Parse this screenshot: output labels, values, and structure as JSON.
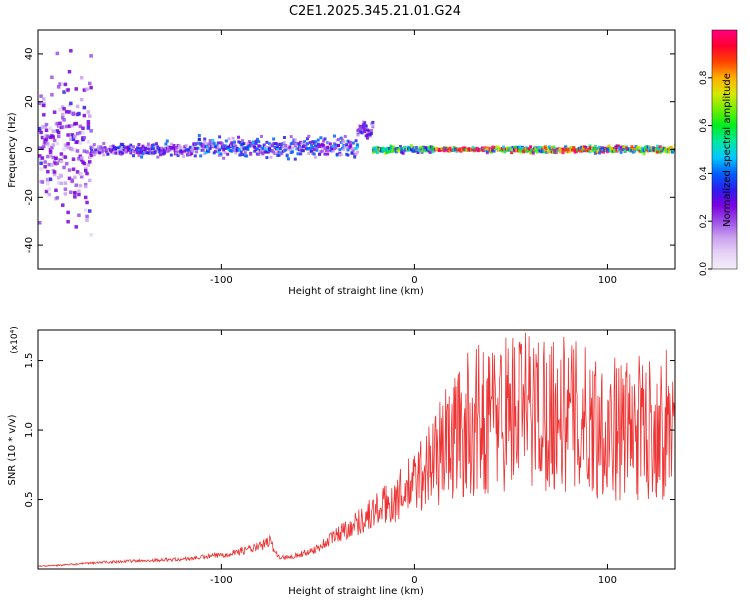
{
  "figure_title": "C2E1.2025.345.21.01.G24",
  "chart_data": [
    {
      "type": "heatmap",
      "xlabel": "Height of straight line (km)",
      "ylabel": "Frequency (Hz)",
      "xlim": [
        -195,
        135
      ],
      "ylim": [
        -50,
        50
      ],
      "xticks": [
        -100,
        0,
        100
      ],
      "xtick_labels": [
        "-100",
        "0",
        "100"
      ],
      "yticks": [
        -40,
        -20,
        0,
        20,
        40
      ],
      "ytick_labels": [
        "-40",
        "-20",
        "0",
        "20",
        "40"
      ],
      "colorbar": {
        "label": "Normalized spectral amplitude",
        "range": [
          0,
          1
        ],
        "ticks": [
          0.0,
          0.2,
          0.4,
          0.6,
          0.8
        ],
        "tick_labels": [
          "0.0",
          "0.2",
          "0.4",
          "0.6",
          "0.8"
        ],
        "colors": [
          "#f4eefa",
          "#e6d2f5",
          "#c9a0ee",
          "#9b4de6",
          "#7a00e0",
          "#2a1ef0",
          "#0060ff",
          "#00c8ff",
          "#00e8a0",
          "#00ee20",
          "#70ee00",
          "#d8e800",
          "#ffb000",
          "#ff4400",
          "#ff0030",
          "#ff0080"
        ]
      },
      "segments": [
        {
          "x_range": [
            -195,
            -168
          ],
          "center_hz": 0,
          "spread_hz": 50,
          "amplitude": 0.25,
          "note": "noisy, scattered across full frequency range"
        },
        {
          "x_range": [
            -168,
            -115
          ],
          "center_hz": 0,
          "spread_hz": 4,
          "amplitude": 0.3,
          "note": "noise column band plus weak signal near 0 Hz"
        },
        {
          "x_range": [
            -115,
            -30
          ],
          "center_hz": 1,
          "spread_hz": 6,
          "amplitude": 0.35
        },
        {
          "x_range": [
            -30,
            -22
          ],
          "center_hz": 8,
          "spread_hz": 6,
          "amplitude": 0.3
        },
        {
          "x_range": [
            -22,
            10
          ],
          "center_hz": 0,
          "spread_hz": 2,
          "amplitude": 0.55
        },
        {
          "x_range": [
            10,
            37
          ],
          "center_hz": 0,
          "spread_hz": 1,
          "amplitude": 0.95
        },
        {
          "x_range": [
            37,
            135
          ],
          "center_hz": 0,
          "spread_hz": 2,
          "amplitude": 0.8
        }
      ]
    },
    {
      "type": "line",
      "xlabel": "Height of straight line (km)",
      "ylabel": "SNR (10 * v/v)",
      "y_multiplier_label": "(x10⁴)",
      "xlim": [
        -195,
        135
      ],
      "ylim": [
        0,
        1.72
      ],
      "xticks": [
        -100,
        0,
        100
      ],
      "xtick_labels": [
        "-100",
        "0",
        "100"
      ],
      "yticks": [
        0.5,
        1.0,
        1.5
      ],
      "ytick_labels": [
        "0.5",
        "1.0",
        "1.5"
      ],
      "line_color": "#ee3333",
      "series": [
        {
          "name": "SNR",
          "x": [
            -195,
            -180,
            -160,
            -140,
            -120,
            -100,
            -90,
            -80,
            -75,
            -70,
            -60,
            -50,
            -40,
            -30,
            -20,
            -10,
            0,
            10,
            20,
            30,
            40,
            50,
            60,
            70,
            80,
            90,
            100,
            110,
            120,
            135
          ],
          "values": [
            0.02,
            0.03,
            0.05,
            0.06,
            0.07,
            0.1,
            0.13,
            0.16,
            0.2,
            0.08,
            0.1,
            0.15,
            0.25,
            0.33,
            0.42,
            0.5,
            0.62,
            0.8,
            0.95,
            1.05,
            1.1,
            1.15,
            1.15,
            1.14,
            1.1,
            1.06,
            1.02,
            1.0,
            1.02,
            1.05
          ]
        }
      ]
    }
  ]
}
